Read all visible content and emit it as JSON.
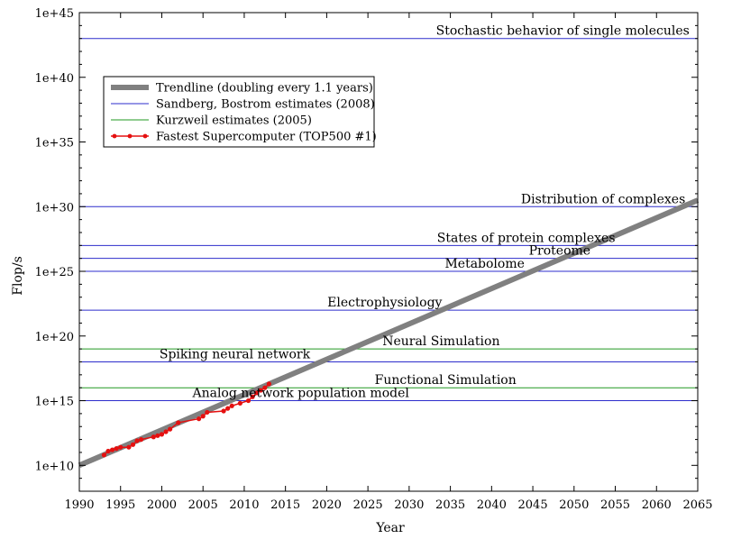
{
  "chart_data": {
    "type": "line",
    "title": "",
    "xlabel": "Year",
    "ylabel": "Flop/s",
    "xlim": [
      1990,
      2065
    ],
    "ylim_log10": [
      8,
      45
    ],
    "y_scale": "log",
    "xticks": [
      1990,
      1995,
      2000,
      2005,
      2010,
      2015,
      2020,
      2025,
      2030,
      2035,
      2040,
      2045,
      2050,
      2055,
      2060,
      2065
    ],
    "xtick_labels": [
      "1990",
      "1995",
      "2000",
      "2005",
      "2010",
      "2015",
      "2020",
      "2025",
      "2030",
      "2035",
      "2040",
      "2045",
      "2050",
      "2055",
      "2060",
      "2065"
    ],
    "yticks_log10": [
      10,
      15,
      20,
      25,
      30,
      35,
      40,
      45
    ],
    "ytick_labels": [
      "1e+10",
      "1e+15",
      "1e+20",
      "1e+25",
      "1e+30",
      "1e+35",
      "1e+40",
      "1e+45"
    ],
    "legend_position": "top-left",
    "legend": [
      {
        "label": "Trendline (doubling every 1.1 years)",
        "color": "#808080",
        "style": "thick"
      },
      {
        "label": "Sandberg, Bostrom estimates (2008)",
        "color": "#2d2dcc",
        "style": "thin"
      },
      {
        "label": "Kurzweil estimates (2005)",
        "color": "#229922",
        "style": "thin"
      },
      {
        "label": "Fastest Supercomputer (TOP500 #1)",
        "color": "#e51010",
        "style": "points"
      }
    ],
    "trendline": {
      "x": [
        1990,
        2065
      ],
      "y_log10": [
        10.0,
        30.5
      ]
    },
    "levels": [
      {
        "label": "Stochastic behavior of single molecules",
        "y_log10": 43.0,
        "group": "sandberg"
      },
      {
        "label": "Distribution of complexes",
        "y_log10": 30.0,
        "group": "sandberg"
      },
      {
        "label": "States of protein complexes",
        "y_log10": 27.0,
        "group": "sandberg"
      },
      {
        "label": "Proteome",
        "y_log10": 26.0,
        "group": "sandberg"
      },
      {
        "label": "Metabolome",
        "y_log10": 25.0,
        "group": "sandberg"
      },
      {
        "label": "Electrophysiology",
        "y_log10": 22.0,
        "group": "sandberg"
      },
      {
        "label": "Neural Simulation",
        "y_log10": 19.0,
        "group": "kurzweil"
      },
      {
        "label": "Spiking neural network",
        "y_log10": 18.0,
        "group": "sandberg"
      },
      {
        "label": "Functional Simulation",
        "y_log10": 16.0,
        "group": "kurzweil"
      },
      {
        "label": "Analog network population model",
        "y_log10": 15.0,
        "group": "sandberg"
      }
    ],
    "supercomputers": {
      "x": [
        1993.0,
        1993.5,
        1994.0,
        1994.5,
        1995.0,
        1996.0,
        1996.5,
        1997.0,
        1997.5,
        1999.0,
        1999.5,
        2000.0,
        2000.5,
        2001.0,
        2002.0,
        2004.5,
        2005.0,
        2005.5,
        2007.5,
        2008.0,
        2008.5,
        2009.5,
        2010.5,
        2011.0,
        2011.5,
        2012.0,
        2012.5,
        2013.0
      ],
      "y_log10": [
        10.8,
        11.1,
        11.2,
        11.3,
        11.4,
        11.4,
        11.6,
        11.9,
        12.0,
        12.2,
        12.3,
        12.4,
        12.6,
        12.8,
        13.3,
        13.6,
        13.8,
        14.1,
        14.2,
        14.4,
        14.6,
        14.8,
        15.0,
        15.3,
        15.6,
        15.8,
        16.0,
        16.3
      ]
    }
  }
}
